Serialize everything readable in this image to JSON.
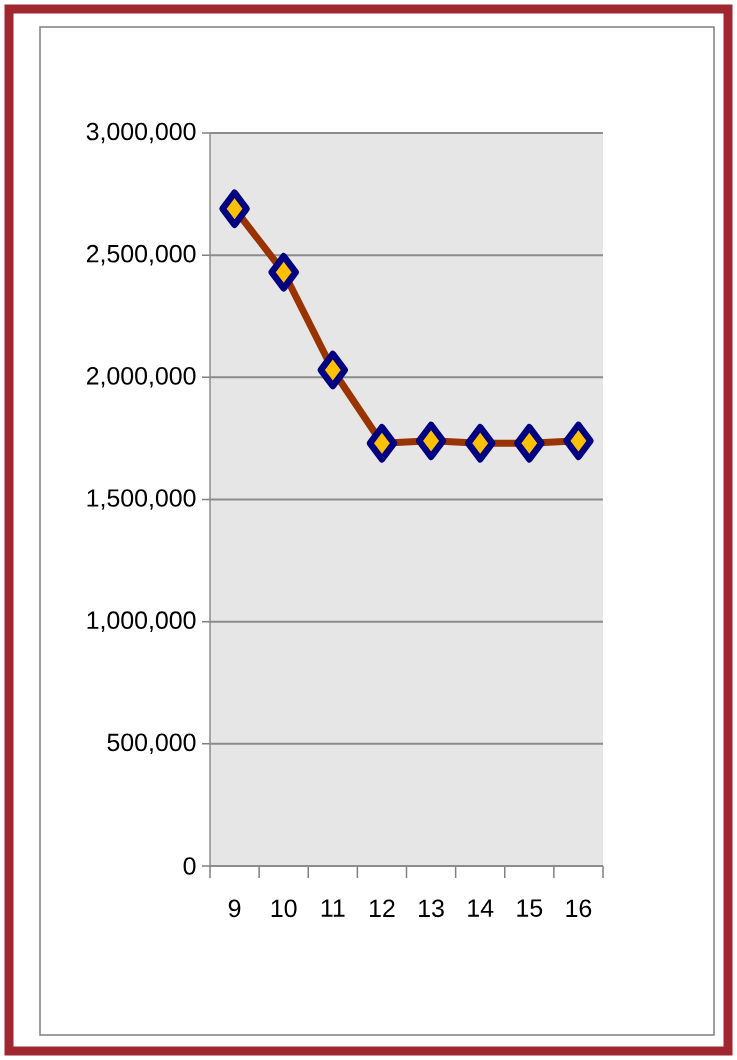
{
  "chart_data": {
    "type": "line",
    "categories": [
      "9",
      "10",
      "11",
      "12",
      "13",
      "14",
      "15",
      "16"
    ],
    "series": [
      {
        "color": "#993300",
        "values": [
          2690000,
          2430000,
          2030000,
          1730000,
          1740000,
          1730000,
          1730000,
          1740000
        ]
      }
    ],
    "ylim": [
      0,
      3000000
    ],
    "yticks": [
      {
        "value": 0,
        "label": "0"
      },
      {
        "value": 500000,
        "label": "500,000"
      },
      {
        "value": 1000000,
        "label": "1,000,000"
      },
      {
        "value": 1500000,
        "label": "1,500,000"
      },
      {
        "value": 2000000,
        "label": "2,000,000"
      },
      {
        "value": 2500000,
        "label": "2,500,000"
      },
      {
        "value": 3000000,
        "label": "3,000,000"
      }
    ],
    "grid": "y",
    "marker": "diamond",
    "line_style": "solid"
  }
}
